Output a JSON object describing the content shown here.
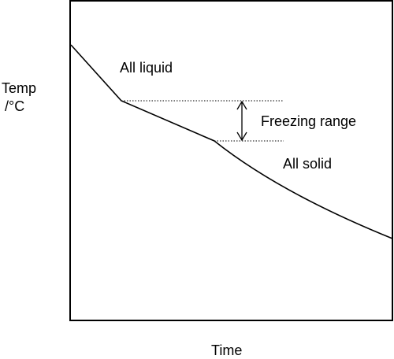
{
  "labels": {
    "y_axis_line1": "Temp",
    "y_axis_line2": "/°C",
    "x_axis": "Time",
    "region_liquid": "All liquid",
    "region_freezing": "Freezing range",
    "region_solid": "All solid"
  },
  "style": {
    "line_color": "#000000",
    "background": "#ffffff"
  }
}
